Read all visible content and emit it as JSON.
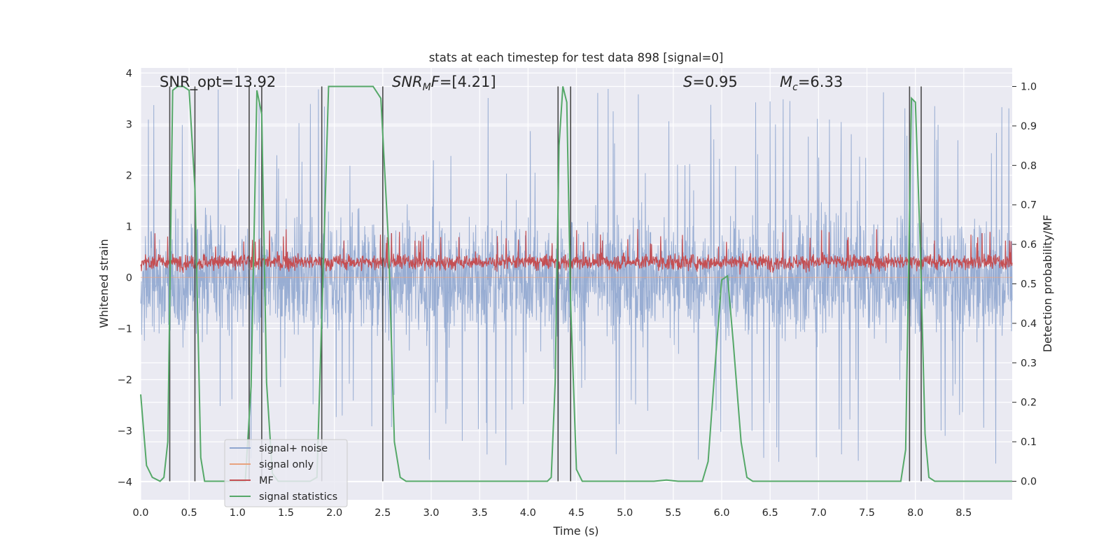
{
  "colors": {
    "plot_bg": "#eaeaf2",
    "grid": "#ffffff",
    "noise": "#8fa6cf",
    "signal_only": "#e8a27e",
    "mf": "#c44e52",
    "stat": "#55a868",
    "marker": "#4a4a4a"
  },
  "chart_data": {
    "type": "line",
    "title": "stats at each timestep for test data 898 [signal=0]",
    "xlabel": "Time (s)",
    "ylabel": "Whitened strain",
    "y2label": "Detection probability/MF",
    "xlim": [
      0,
      9.0
    ],
    "ylim": [
      -4.35,
      4.1
    ],
    "y2lim": [
      -0.047,
      1.047
    ],
    "x_ticks": [
      "0.0",
      "0.5",
      "1.0",
      "1.5",
      "2.0",
      "2.5",
      "3.0",
      "3.5",
      "4.0",
      "4.5",
      "5.0",
      "5.5",
      "6.0",
      "6.5",
      "7.0",
      "7.5",
      "8.0",
      "8.5"
    ],
    "y_ticks": [
      "4",
      "3",
      "2",
      "1",
      "0",
      "−1",
      "−2",
      "−3",
      "−4"
    ],
    "y2_ticks": [
      "1.0",
      "0.9",
      "0.8",
      "0.7",
      "0.6",
      "0.5",
      "0.4",
      "0.3",
      "0.2",
      "0.1",
      "0.0"
    ],
    "grid": true,
    "legend_position": "lower-left",
    "annotations": {
      "snr_opt": "SNR_opt=13.92",
      "snr_mf_italic": "SNR",
      "snr_mf_sub": "M",
      "snr_mf_tail": "F",
      "snr_mf_value": "=[4.21]",
      "s_italic": "S",
      "s_value": "=0.95",
      "mc_italic": "M",
      "mc_sub": "c",
      "mc_value": "=6.33"
    },
    "series": [
      {
        "name": "signal+ noise",
        "color": "#8fa6cf",
        "kind": "noise",
        "amplitude_core": 2.1,
        "amplitude_spikes": 3.7
      },
      {
        "name": "signal only",
        "color": "#e8a27e",
        "kind": "flat",
        "value": 0
      },
      {
        "name": "MF",
        "color": "#c44e52",
        "kind": "noise",
        "center": 0.3,
        "amplitude_spikes": 0.95
      },
      {
        "name": "signal statistics",
        "color": "#55a868",
        "axis": "right",
        "x": [
          0.0,
          0.06,
          0.12,
          0.2,
          0.24,
          0.28,
          0.33,
          0.38,
          0.44,
          0.5,
          0.56,
          0.62,
          0.66,
          0.7,
          0.76,
          0.8,
          1.0,
          1.08,
          1.14,
          1.2,
          1.25,
          1.3,
          1.36,
          1.42,
          1.5,
          1.75,
          1.82,
          1.88,
          1.94,
          2.0,
          2.4,
          2.48,
          2.56,
          2.62,
          2.68,
          2.74,
          3.0,
          4.2,
          4.24,
          4.28,
          4.32,
          4.36,
          4.4,
          4.44,
          4.5,
          4.56,
          4.62,
          4.7,
          5.0,
          5.3,
          5.43,
          5.55,
          5.8,
          5.86,
          5.94,
          6.0,
          6.06,
          6.12,
          6.2,
          6.26,
          6.32,
          6.4,
          7.0,
          7.85,
          7.9,
          7.96,
          8.0,
          8.05,
          8.1,
          8.14,
          8.2,
          8.3,
          9.0
        ],
        "y": [
          0.22,
          0.04,
          0.01,
          0.0,
          0.01,
          0.1,
          0.99,
          1.0,
          1.0,
          0.99,
          0.74,
          0.06,
          0.0,
          0.0,
          0.0,
          0.0,
          0.0,
          0.0,
          0.24,
          0.99,
          0.93,
          0.25,
          0.02,
          0.0,
          0.0,
          0.0,
          0.01,
          0.5,
          1.0,
          1.0,
          1.0,
          0.97,
          0.6,
          0.1,
          0.01,
          0.0,
          0.0,
          0.0,
          0.01,
          0.25,
          0.85,
          1.0,
          0.96,
          0.45,
          0.03,
          0.0,
          0.0,
          0.0,
          0.0,
          0.0,
          0.003,
          0.0,
          0.0,
          0.05,
          0.32,
          0.51,
          0.52,
          0.35,
          0.1,
          0.01,
          0.0,
          0.0,
          0.0,
          0.0,
          0.08,
          0.97,
          0.96,
          0.6,
          0.12,
          0.01,
          0.0,
          0.0,
          0.0
        ]
      }
    ],
    "vertical_markers": [
      0.3,
      0.56,
      1.12,
      1.25,
      1.87,
      2.5,
      4.31,
      4.44,
      7.94,
      8.06
    ]
  }
}
